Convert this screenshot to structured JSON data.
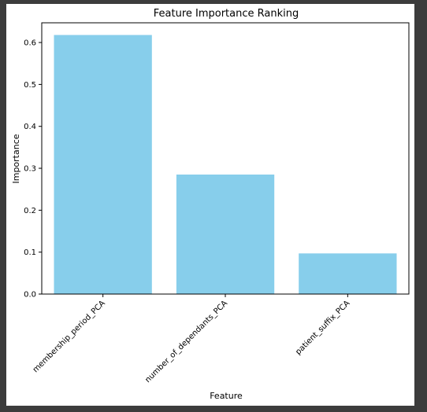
{
  "chart_data": {
    "type": "bar",
    "title": "Feature Importance Ranking",
    "xlabel": "Feature",
    "ylabel": "Importance",
    "categories": [
      "membership_period_PCA",
      "number_of_dependants_PCA",
      "patient_suffix_PCA"
    ],
    "values": [
      0.618,
      0.285,
      0.097
    ],
    "ylim": [
      0,
      0.647
    ],
    "yticks": [
      "0.0",
      "0.1",
      "0.2",
      "0.3",
      "0.4",
      "0.5",
      "0.6"
    ],
    "bar_color": "#87CEEB",
    "grid": false
  }
}
